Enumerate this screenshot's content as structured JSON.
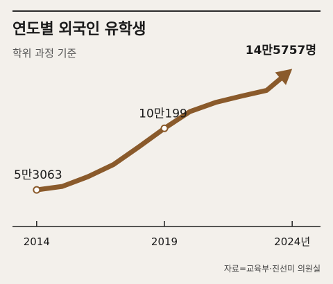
{
  "header": {
    "title": "연도별 외국인 유학생",
    "subtitle": "학위 과정 기준"
  },
  "source": "자료=교육부·진선미 의원실",
  "colors": {
    "line": "#8a5a2b",
    "axis": "#222222",
    "text": "#1a1a1a",
    "background": "#f3f0eb"
  },
  "chart_data": {
    "type": "line",
    "title": "연도별 외국인 유학생",
    "subtitle": "학위 과정 기준",
    "xlabel": "",
    "ylabel": "",
    "x": [
      2014,
      2015,
      2016,
      2017,
      2018,
      2019,
      2020,
      2021,
      2022,
      2023,
      2024
    ],
    "series": [
      {
        "values": [
          53063,
          55739,
          63104,
          72374,
          86036,
          100199,
          113003,
          120018,
          124803,
          129240,
          145757
        ]
      }
    ],
    "xticks": [
      {
        "value": 2014,
        "label": "2014"
      },
      {
        "value": 2019,
        "label": "2019"
      },
      {
        "value": 2024,
        "label": "2024년"
      }
    ],
    "annotations": [
      {
        "x": 2014,
        "label": "5만3063"
      },
      {
        "x": 2019,
        "label": "10만199"
      },
      {
        "x": 2024,
        "label": "14만5757명"
      }
    ],
    "xlim": [
      2013,
      2025
    ],
    "ylim": [
      25000,
      155000
    ],
    "grid": false,
    "legend": "none",
    "arrow_end": true
  }
}
